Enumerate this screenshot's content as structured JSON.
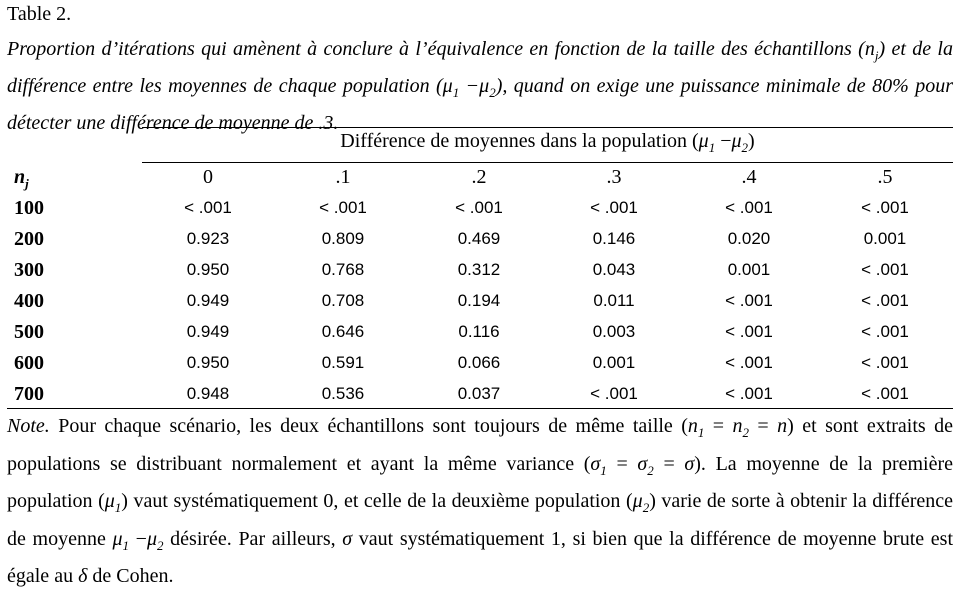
{
  "table_label": "Table 2.",
  "caption": "Proportion d’itérations qui amènent à conclure à l’équivalence en fonction de la taille des échantillons (nj) et de la différence entre les moyennes de chaque population (μ1 −μ2), quand on exige une puissance minimale de 80% pour détecter une différence de moyenne de .3.",
  "spanner": "Différence de moyennes dans la population (μ1 −μ2)",
  "row_header": "nj",
  "columns": [
    "0",
    ".1",
    ".2",
    ".3",
    ".4",
    ".5"
  ],
  "rows": [
    {
      "n": "100",
      "values": [
        "< .001",
        "< .001",
        "< .001",
        "< .001",
        "< .001",
        "< .001"
      ]
    },
    {
      "n": "200",
      "values": [
        "0.923",
        "0.809",
        "0.469",
        "0.146",
        "0.020",
        "0.001"
      ]
    },
    {
      "n": "300",
      "values": [
        "0.950",
        "0.768",
        "0.312",
        "0.043",
        "0.001",
        "< .001"
      ]
    },
    {
      "n": "400",
      "values": [
        "0.949",
        "0.708",
        "0.194",
        "0.011",
        "< .001",
        "< .001"
      ]
    },
    {
      "n": "500",
      "values": [
        "0.949",
        "0.646",
        "0.116",
        "0.003",
        "< .001",
        "< .001"
      ]
    },
    {
      "n": "600",
      "values": [
        "0.950",
        "0.591",
        "0.066",
        "0.001",
        "< .001",
        "< .001"
      ]
    },
    {
      "n": "700",
      "values": [
        "0.948",
        "0.536",
        "0.037",
        "< .001",
        "< .001",
        "< .001"
      ]
    }
  ],
  "note": "Note. Pour chaque scénario, les deux échantillons sont toujours de même taille (n1 = n2 = n) et sont extraits de populations se distribuant normalement et ayant la même variance (σ1 = σ2 = σ). La moyenne de la première population (μ1) vaut systématiquement 0, et celle de la deuxième population (μ2) varie de sorte à obtenir la différence de moyenne μ1 −μ2 désirée. Par ailleurs, σ vaut systématiquement 1, si bien que la différence de moyenne brute est égale au δ de Cohen."
}
